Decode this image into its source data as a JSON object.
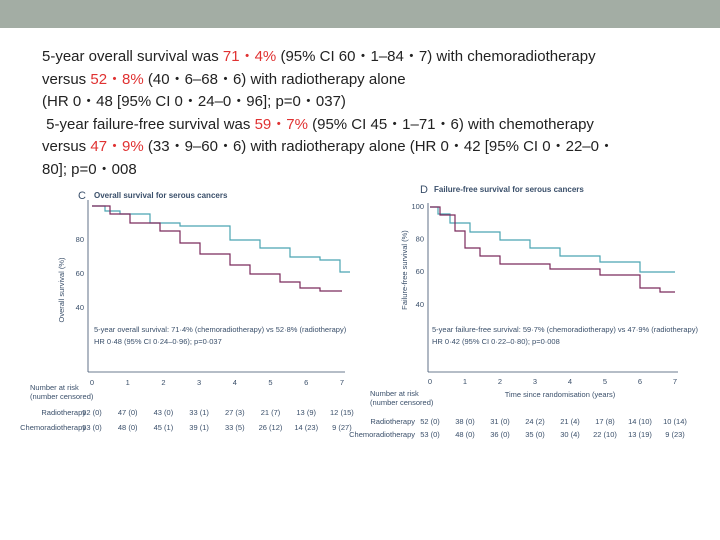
{
  "text": {
    "lines": [
      {
        "before": "5-year overall survival was ",
        "highlight": "71・4%",
        "after": " (95% CI 60・1–84・7) with chemoradiotherapy"
      },
      {
        "before": "versus ",
        "highlight": "52・8%",
        "after": " (40・6–68・6) with radiotherapy alone"
      },
      {
        "before": "(HR 0・48 [95% CI 0・24–0・96]; p=0・037)"
      },
      {
        "before": " 5-year failure-free survival was ",
        "highlight": "59・7%",
        "after": " (95% CI 45・1–71・6) with chemotherapy"
      },
      {
        "before": "versus ",
        "highlight": "47・9%",
        "after": " (33・9–60・6) with radiotherapy alone (HR 0・42 [95% CI 0・22–0・"
      },
      {
        "before": "80]; p=0・008"
      }
    ]
  },
  "panels": [
    {
      "letter": "C",
      "title": "Overall survival for serous cancers",
      "y_label": "Overall survival (%)",
      "yticks": [
        "80",
        "60",
        "40"
      ],
      "annotation": [
        "5-year overall survival: 71·4% (chemoradiotherapy) vs 52·8% (radiotherapy)",
        "HR 0·48 (95% CI 0·24–0·96); p=0·037"
      ],
      "xticks": [
        "0",
        "1",
        "2",
        "3",
        "4",
        "5",
        "6",
        "7"
      ],
      "risk_title": [
        "Number at risk",
        "(number censored)"
      ],
      "risk_rows": [
        {
          "label": "Radiotherapy",
          "values": [
            "52 (0)",
            "47 (0)",
            "43 (0)",
            "33 (1)",
            "27 (3)",
            "21 (7)",
            "13 (9)",
            "12 (15)"
          ]
        },
        {
          "label": "Chemoradiotherapy",
          "values": [
            "53 (0)",
            "48 (0)",
            "45 (1)",
            "39 (1)",
            "33 (5)",
            "26 (12)",
            "14 (23)",
            "9 (27)"
          ]
        }
      ]
    },
    {
      "letter": "D",
      "title": "Failure-free survival for serous cancers",
      "y_label": "Failure-free survival (%)",
      "yticks": [
        "100",
        "80",
        "60",
        "40"
      ],
      "annotation": [
        "5-year failure-free survival: 59·7% (chemoradiotherapy) vs 47·9% (radiotherapy)",
        "HR 0·42 (95% CI 0·22–0·80); p=0·008"
      ],
      "xticks": [
        "0",
        "1",
        "2",
        "3",
        "4",
        "5",
        "6",
        "7"
      ],
      "x_label": "Time since randomisation (years)",
      "risk_title": [
        "Number at risk",
        "(number censored)"
      ],
      "risk_rows": [
        {
          "label": "Radiotherapy",
          "values": [
            "52 (0)",
            "38 (0)",
            "31 (0)",
            "24 (2)",
            "21 (4)",
            "17 (8)",
            "14 (10)",
            "10 (14)"
          ]
        },
        {
          "label": "Chemoradiotherapy",
          "values": [
            "53 (0)",
            "48 (0)",
            "36 (0)",
            "35 (0)",
            "30 (4)",
            "22 (10)",
            "13 (19)",
            "9 (23)"
          ]
        }
      ]
    }
  ]
}
